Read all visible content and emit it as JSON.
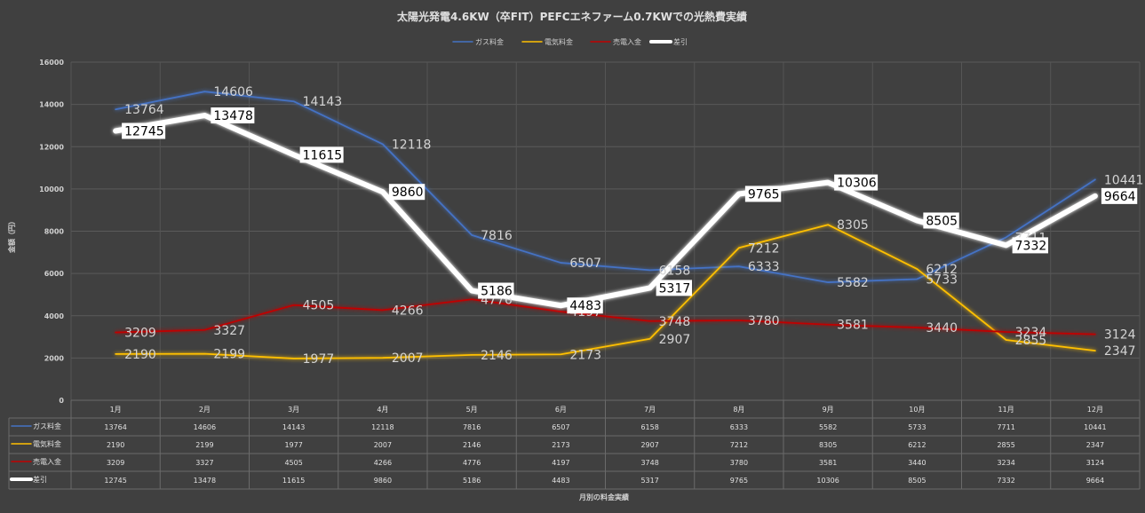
{
  "chart_data": {
    "type": "line",
    "title": "太陽光発電4.6KW（卒FIT）PEFCエネファーム0.7KWでの光熱費実績",
    "ylabel": "金額（円）",
    "xlabel": "月別の料金実績",
    "ylim": [
      0,
      16000
    ],
    "yticks": [
      0,
      2000,
      4000,
      6000,
      8000,
      10000,
      12000,
      14000,
      16000
    ],
    "grid": true,
    "legend": "top-center",
    "categories": [
      "1月",
      "2月",
      "3月",
      "4月",
      "5月",
      "6月",
      "7月",
      "8月",
      "9月",
      "10月",
      "11月",
      "12月"
    ],
    "series": [
      {
        "name": "ガス料金",
        "color": "#4472c4",
        "values": [
          13764,
          14606,
          14143,
          12118,
          7816,
          6507,
          6158,
          6333,
          5582,
          5733,
          7711,
          10441
        ]
      },
      {
        "name": "電気料金",
        "color": "#ffc000",
        "values": [
          2190,
          2199,
          1977,
          2007,
          2146,
          2173,
          2907,
          7212,
          8305,
          6212,
          2855,
          2347
        ]
      },
      {
        "name": "売電入金",
        "color": "#c00000",
        "values": [
          3209,
          3327,
          4505,
          4266,
          4776,
          4197,
          3748,
          3780,
          3581,
          3440,
          3234,
          3124
        ]
      },
      {
        "name": "差引",
        "color": "#ffffff",
        "values": [
          12745,
          13478,
          11615,
          9860,
          5186,
          4483,
          5317,
          9765,
          10306,
          8505,
          7332,
          9664
        ]
      }
    ]
  }
}
